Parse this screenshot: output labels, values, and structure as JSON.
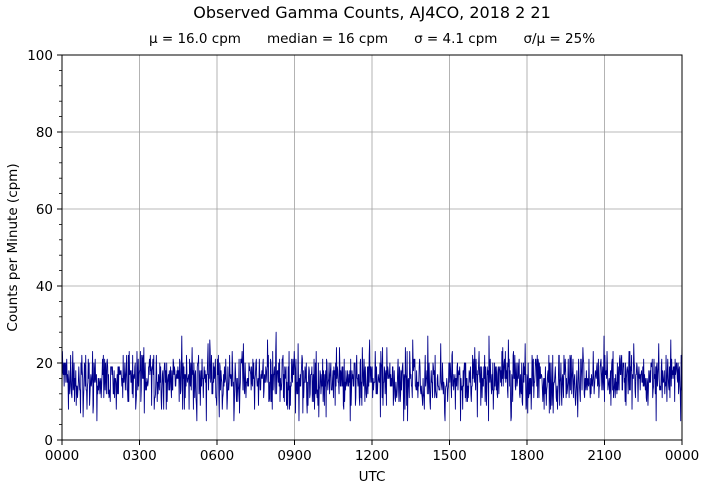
{
  "chart_data": {
    "type": "line",
    "title": "Observed Gamma Counts, AJ4CO, 2018 2 21",
    "stats": [
      "μ = 16.0 cpm",
      "median = 16 cpm",
      "σ = 4.1 cpm",
      "σ/μ = 25%"
    ],
    "xlabel": "UTC",
    "ylabel": "Counts per Minute (cpm)",
    "xlim": [
      0,
      1440
    ],
    "ylim": [
      0,
      100
    ],
    "x_ticks": [
      "0000",
      "0300",
      "0600",
      "0900",
      "1200",
      "1500",
      "1800",
      "2100",
      "0000"
    ],
    "y_ticks": [
      "0",
      "20",
      "40",
      "60",
      "80",
      "100"
    ],
    "grid": true,
    "series": [
      {
        "color": "#00008b",
        "x_unit": "minutes since 0000 UTC",
        "mean": 16.0,
        "std": 4.1,
        "min": 5,
        "max": 30,
        "n_points": 1440
      }
    ]
  }
}
